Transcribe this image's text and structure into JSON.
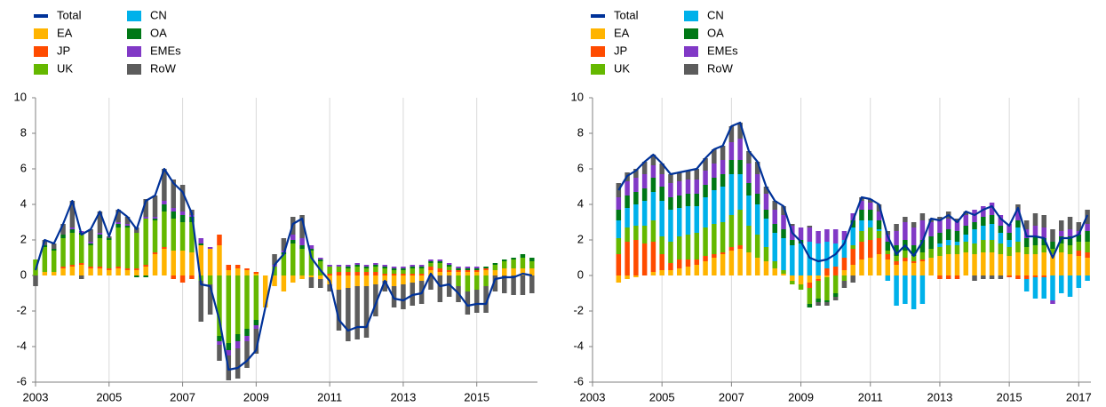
{
  "chart_data": [
    {
      "type": "bar",
      "stacked": true,
      "legend": "top-left",
      "grid": true,
      "xlim": [
        2003,
        2016.65
      ],
      "xticks": [
        2003,
        2005,
        2007,
        2009,
        2011,
        2013,
        2015
      ],
      "ylim": [
        -6,
        10
      ],
      "yticks": [
        -6,
        -4,
        -2,
        0,
        2,
        4,
        6,
        8,
        10
      ],
      "x": [
        2003,
        2003.25,
        2003.5,
        2003.75,
        2004,
        2004.25,
        2004.5,
        2004.75,
        2005,
        2005.25,
        2005.5,
        2005.75,
        2006,
        2006.25,
        2006.5,
        2006.75,
        2007,
        2007.25,
        2007.5,
        2007.75,
        2008,
        2008.25,
        2008.5,
        2008.75,
        2009,
        2009.25,
        2009.5,
        2009.75,
        2010,
        2010.25,
        2010.5,
        2010.75,
        2011,
        2011.25,
        2011.5,
        2011.75,
        2012,
        2012.25,
        2012.5,
        2012.75,
        2013,
        2013.25,
        2013.5,
        2013.75,
        2014,
        2014.25,
        2014.5,
        2014.75,
        2015,
        2015.25,
        2015.5,
        2015.75,
        2016,
        2016.25,
        2016.5
      ],
      "series": [
        {
          "name": "Total",
          "type": "line",
          "color": "#003299",
          "values": [
            0.3,
            2.0,
            1.8,
            2.9,
            4.2,
            2.3,
            2.6,
            3.6,
            2.2,
            3.7,
            3.3,
            2.6,
            4.2,
            4.5,
            6.0,
            5.2,
            4.7,
            3.5,
            -0.5,
            -0.6,
            -2.5,
            -5.3,
            -5.2,
            -4.8,
            -4.2,
            -1.8,
            0.6,
            1.2,
            2.9,
            3.2,
            1.0,
            0.3,
            -0.3,
            -2.5,
            -3.1,
            -2.9,
            -2.9,
            -1.6,
            -0.3,
            -1.3,
            -1.4,
            -1.1,
            -1.0,
            0.1,
            -0.6,
            -0.5,
            -1.0,
            -1.7,
            -1.6,
            -1.6,
            -0.2,
            -0.1,
            -0.1,
            0.1,
            0
          ]
        },
        {
          "name": "EA",
          "color": "#FFB400",
          "values": [
            0,
            0.2,
            0.2,
            0.4,
            0.5,
            0.6,
            0.4,
            0.4,
            0.3,
            0.4,
            0.3,
            0.3,
            0.5,
            1.2,
            1.5,
            1.4,
            1.4,
            1.3,
            1.7,
            1.5,
            1.7,
            0.3,
            0.4,
            0.3,
            0.1,
            -1.8,
            -0.6,
            -0.9,
            -0.4,
            -0.2,
            -0.1,
            -0.2,
            -0.5,
            -0.8,
            -0.7,
            -0.6,
            -0.6,
            -0.5,
            -0.3,
            -0.6,
            -0.5,
            -0.4,
            -0.3,
            0.3,
            0.2,
            0.2,
            0.2,
            0.2,
            0.2,
            0.3,
            0.3,
            0.4,
            0.4,
            0.4,
            0.4
          ]
        },
        {
          "name": "JP",
          "color": "#FF4B00",
          "values": [
            0,
            0,
            0,
            0.1,
            0.1,
            0.1,
            0.1,
            0.1,
            0.1,
            0.1,
            0.1,
            0.1,
            0.1,
            0.1,
            0.1,
            -0.2,
            -0.4,
            -0.2,
            0,
            0,
            0.6,
            0.3,
            0.2,
            0.1,
            0.1,
            0,
            0,
            0,
            0,
            0,
            0,
            0,
            0.1,
            0.2,
            0.2,
            0.2,
            0.2,
            0.2,
            0.1,
            0.1,
            0.1,
            0.1,
            0.1,
            0.2,
            0.2,
            0.1,
            0.1,
            0.1,
            0.1,
            0.1,
            0,
            0,
            0,
            0,
            0
          ]
        },
        {
          "name": "UK",
          "color": "#65B800",
          "values": [
            0.9,
            1.4,
            1.2,
            1.6,
            1.8,
            1.6,
            1.2,
            1.6,
            1.6,
            2.2,
            2.3,
            2.0,
            2.6,
            1.8,
            2.0,
            1.8,
            1.6,
            1.7,
            -0.3,
            -0.5,
            -3.4,
            -3.8,
            -3.3,
            -3.0,
            -2.5,
            0,
            0.5,
            1.2,
            1.8,
            1.5,
            1.4,
            0.8,
            0.4,
            0.3,
            0.2,
            0.3,
            0.2,
            0.3,
            0.3,
            0.2,
            0.2,
            0.3,
            0.3,
            0.2,
            0.3,
            0.2,
            -0.6,
            -0.9,
            -0.8,
            -0.6,
            0.3,
            0.4,
            0.5,
            0.6,
            0.4
          ]
        },
        {
          "name": "CN",
          "color": "#00B1EA",
          "values": [
            0,
            0,
            0,
            0,
            0,
            0,
            0,
            0,
            0,
            0,
            0,
            0,
            0,
            0,
            0,
            0,
            0,
            0,
            0,
            0,
            0,
            0,
            0,
            0,
            0,
            0,
            0,
            0,
            0,
            0,
            0,
            0,
            0,
            0,
            0,
            0,
            0,
            0,
            0,
            0,
            0,
            0,
            0,
            0,
            0,
            0,
            0,
            0,
            0,
            0,
            0,
            0,
            0,
            0,
            0
          ]
        },
        {
          "name": "OA",
          "color": "#007816",
          "values": [
            0,
            0.1,
            0.1,
            0.2,
            0.2,
            0.1,
            0.1,
            0.2,
            0.1,
            0.2,
            0.1,
            -0.1,
            -0.1,
            0.1,
            0.4,
            0.4,
            0.4,
            0.3,
            0.1,
            0,
            -0.3,
            -0.4,
            -0.4,
            -0.4,
            -0.3,
            0,
            0,
            0.1,
            0.2,
            0.2,
            0.1,
            0.1,
            0,
            0,
            0.1,
            0.1,
            0.1,
            0.1,
            0.1,
            0.1,
            0.1,
            0.1,
            0.1,
            0.1,
            0.1,
            0.1,
            0.1,
            0.1,
            0.1,
            0.1,
            0.1,
            0.1,
            0.1,
            0.2,
            0.2
          ]
        },
        {
          "name": "EMEs",
          "color": "#8139C6",
          "values": [
            0,
            0,
            0,
            0,
            0.1,
            0.1,
            0.1,
            0.1,
            0,
            0.1,
            0.1,
            0,
            0.1,
            0.1,
            0.2,
            0.2,
            0.2,
            0.1,
            0.3,
            0.1,
            -0.2,
            -0.3,
            -0.4,
            -0.3,
            -0.2,
            0,
            0.1,
            0.1,
            0.3,
            0.4,
            0.2,
            0.1,
            0.1,
            0.1,
            0.1,
            0.1,
            0.1,
            0.1,
            0.1,
            0.1,
            0.1,
            0.1,
            0.1,
            0.1,
            0.1,
            0.1,
            0.1,
            0.1,
            0.1,
            0,
            0,
            0,
            0,
            0,
            0
          ]
        },
        {
          "name": "RoW",
          "color": "#5C5C5C",
          "values": [
            -0.6,
            0.3,
            0.3,
            0.6,
            1.5,
            -0.2,
            0.7,
            1.2,
            0.1,
            0.7,
            0.4,
            0.3,
            1.0,
            1.2,
            1.8,
            1.6,
            1.5,
            0.3,
            -2.3,
            -1.7,
            -0.9,
            -1.4,
            -1.7,
            -1.5,
            -1.4,
            0,
            0.6,
            0.7,
            1.0,
            1.3,
            -0.6,
            -0.5,
            -0.4,
            -2.3,
            -3.0,
            -3.0,
            -2.9,
            -1.8,
            -0.6,
            -1.2,
            -1.4,
            -1.3,
            -1.3,
            -0.8,
            -1.5,
            -1.2,
            -0.9,
            -1.3,
            -1.3,
            -1.5,
            -0.9,
            -1.0,
            -1.1,
            -1.1,
            -1.0
          ]
        }
      ]
    },
    {
      "type": "bar",
      "stacked": true,
      "legend": "top-left",
      "grid": true,
      "xlim": [
        2003,
        2017.35
      ],
      "xticks": [
        2003,
        2005,
        2007,
        2009,
        2011,
        2013,
        2015,
        2017
      ],
      "ylim": [
        -6,
        10
      ],
      "yticks": [
        -6,
        -4,
        -2,
        0,
        2,
        4,
        6,
        8,
        10
      ],
      "x": [
        2003.75,
        2004,
        2004.25,
        2004.5,
        2004.75,
        2005,
        2005.25,
        2005.5,
        2005.75,
        2006,
        2006.25,
        2006.5,
        2006.75,
        2007,
        2007.25,
        2007.5,
        2007.75,
        2008,
        2008.25,
        2008.5,
        2008.75,
        2009,
        2009.25,
        2009.5,
        2009.75,
        2010,
        2010.25,
        2010.5,
        2010.75,
        2011,
        2011.25,
        2011.5,
        2011.75,
        2012,
        2012.25,
        2012.5,
        2012.75,
        2013,
        2013.25,
        2013.5,
        2013.75,
        2014,
        2014.25,
        2014.5,
        2014.75,
        2015,
        2015.25,
        2015.5,
        2015.75,
        2016,
        2016.25,
        2016.5,
        2016.75,
        2017,
        2017.25
      ],
      "series": [
        {
          "name": "Total",
          "type": "line",
          "color": "#003299",
          "values": [
            4.8,
            5.6,
            5.9,
            6.4,
            6.8,
            6.3,
            5.7,
            5.8,
            5.9,
            6.0,
            6.6,
            7.1,
            7.3,
            8.4,
            8.6,
            7.0,
            6.4,
            5.0,
            4.2,
            3.9,
            2.4,
            1.9,
            1.0,
            0.8,
            0.9,
            1.2,
            1.8,
            3.1,
            4.4,
            4.3,
            4.0,
            2.2,
            1.2,
            1.7,
            1.1,
            1.9,
            3.2,
            3.1,
            3.4,
            3.0,
            3.6,
            3.4,
            3.7,
            3.9,
            3.2,
            2.8,
            3.8,
            2.2,
            2.2,
            2.1,
            1.0,
            2.1,
            2.1,
            2.3,
            3.4
          ]
        },
        {
          "name": "EA",
          "color": "#FFB400",
          "values": [
            -0.4,
            -0.2,
            -0.1,
            0,
            0.2,
            0.3,
            0.3,
            0.4,
            0.5,
            0.6,
            0.8,
            1.0,
            1.2,
            1.4,
            1.5,
            1.3,
            1.0,
            0.8,
            0.4,
            0.1,
            -0.3,
            -0.5,
            -0.4,
            -0.2,
            -0.1,
            0,
            0.3,
            0.6,
            0.9,
            1.0,
            1.2,
            0.9,
            0.6,
            0.8,
            0.7,
            0.8,
            1.0,
            1.1,
            1.2,
            1.2,
            1.3,
            1.2,
            1.3,
            1.3,
            1.2,
            1.1,
            1.3,
            1.2,
            1.2,
            1.3,
            1.2,
            1.3,
            1.2,
            1.1,
            1.0
          ]
        },
        {
          "name": "JP",
          "color": "#FF4B00",
          "values": [
            1.2,
            1.9,
            2.0,
            1.8,
            1.7,
            0.9,
            0.4,
            0.5,
            0.4,
            0.3,
            0.3,
            0.2,
            0.1,
            0.2,
            0.2,
            0,
            0,
            0,
            0,
            0,
            0,
            0,
            -0.3,
            -0.1,
            0.4,
            0.5,
            0.7,
            0.9,
            1.0,
            1.0,
            0.9,
            0.3,
            0.2,
            0.2,
            0.1,
            0.1,
            0,
            -0.2,
            -0.2,
            -0.2,
            0,
            0,
            0,
            0,
            0,
            -0.1,
            -0.2,
            -0.2,
            -0.1,
            -0.1,
            0,
            0,
            0,
            0.3,
            0.3
          ]
        },
        {
          "name": "UK",
          "color": "#65B800",
          "values": [
            0.9,
            0.8,
            0.8,
            1.0,
            1.2,
            1.0,
            1.2,
            1.3,
            1.4,
            1.5,
            1.6,
            1.7,
            1.7,
            1.8,
            2.0,
            1.5,
            1.3,
            0.8,
            0.4,
            0.2,
            -0.2,
            -0.3,
            -0.9,
            -1.0,
            -1.3,
            -1.0,
            -0.3,
            0.2,
            0.6,
            0.7,
            0.4,
            0.2,
            0.3,
            0.4,
            0.3,
            0.4,
            0.5,
            0.5,
            0.5,
            0.5,
            0.6,
            0.6,
            0.7,
            0.7,
            0.6,
            0.5,
            0.6,
            0.4,
            0.5,
            0.4,
            0.3,
            0.5,
            0.5,
            0.5,
            0.6
          ]
        },
        {
          "name": "CN",
          "color": "#00B1EA",
          "values": [
            1.0,
            1.1,
            1.2,
            1.4,
            1.6,
            2.0,
            1.8,
            1.6,
            1.6,
            1.5,
            1.7,
            1.9,
            2.0,
            2.3,
            2.0,
            1.7,
            1.7,
            1.6,
            1.6,
            1.8,
            1.7,
            1.8,
            1.9,
            1.8,
            1.5,
            1.3,
            1.0,
            1.0,
            0.6,
            0.4,
            0.1,
            -0.3,
            -1.7,
            -1.6,
            -1.9,
            -1.6,
            0,
            0.2,
            0.3,
            0.2,
            0.4,
            0.8,
            0.8,
            0.9,
            0.6,
            0.4,
            0.8,
            -0.7,
            -1.2,
            -1.2,
            -1.4,
            -1.0,
            -1.2,
            -0.7,
            -0.3
          ]
        },
        {
          "name": "OA",
          "color": "#007816",
          "values": [
            0.6,
            0.7,
            0.7,
            0.7,
            0.8,
            0.8,
            0.7,
            0.7,
            0.7,
            0.7,
            0.7,
            0.7,
            0.7,
            0.8,
            0.8,
            0.7,
            0.6,
            0.5,
            0.5,
            0.5,
            0.3,
            0.2,
            -0.2,
            -0.2,
            -0.1,
            -0.2,
            0,
            0.4,
            0.6,
            0.6,
            0.5,
            0.5,
            0.6,
            0.6,
            0.6,
            0.7,
            0.7,
            0.6,
            0.6,
            0.6,
            0.5,
            0.4,
            0.5,
            0.5,
            0.4,
            0.4,
            0.4,
            0.5,
            0.5,
            0.4,
            0.4,
            0.4,
            0.5,
            0.4,
            0.6
          ]
        },
        {
          "name": "EMEs",
          "color": "#8139C6",
          "values": [
            0.7,
            0.8,
            0.8,
            0.8,
            0.7,
            0.7,
            0.8,
            0.8,
            0.8,
            0.8,
            0.8,
            0.8,
            0.8,
            1.0,
            1.2,
            1.1,
            1.1,
            0.9,
            0.8,
            0.8,
            0.8,
            0.7,
            0.8,
            0.7,
            0.7,
            0.8,
            0.5,
            0.4,
            0.5,
            0.4,
            0.5,
            0.4,
            0.8,
            1.0,
            1.0,
            1.1,
            0.8,
            0.7,
            0.6,
            0.5,
            0.6,
            0.7,
            0.6,
            0.7,
            0.6,
            0.5,
            0.6,
            0.5,
            0.6,
            0.6,
            -0.2,
            0.3,
            0.4,
            0.2,
            0.4
          ]
        },
        {
          "name": "RoW",
          "color": "#5C5C5C",
          "values": [
            0.8,
            0.5,
            0.5,
            0.7,
            0.6,
            0.6,
            0.5,
            0.5,
            0.5,
            0.6,
            0.7,
            0.8,
            0.8,
            0.9,
            0.9,
            0.7,
            0.7,
            0.4,
            0.5,
            0.5,
            0.1,
            0,
            0.1,
            -0.2,
            -0.2,
            -0.2,
            -0.4,
            -0.4,
            0.2,
            0.2,
            0.4,
            0.2,
            0.4,
            0.3,
            0.3,
            0.4,
            0.2,
            0.2,
            0.4,
            0.2,
            0.2,
            -0.3,
            -0.2,
            -0.2,
            -0.2,
            0,
            0.3,
            0.5,
            0.7,
            0.7,
            0.7,
            0.6,
            0.7,
            0.5,
            0.8
          ]
        }
      ]
    }
  ]
}
